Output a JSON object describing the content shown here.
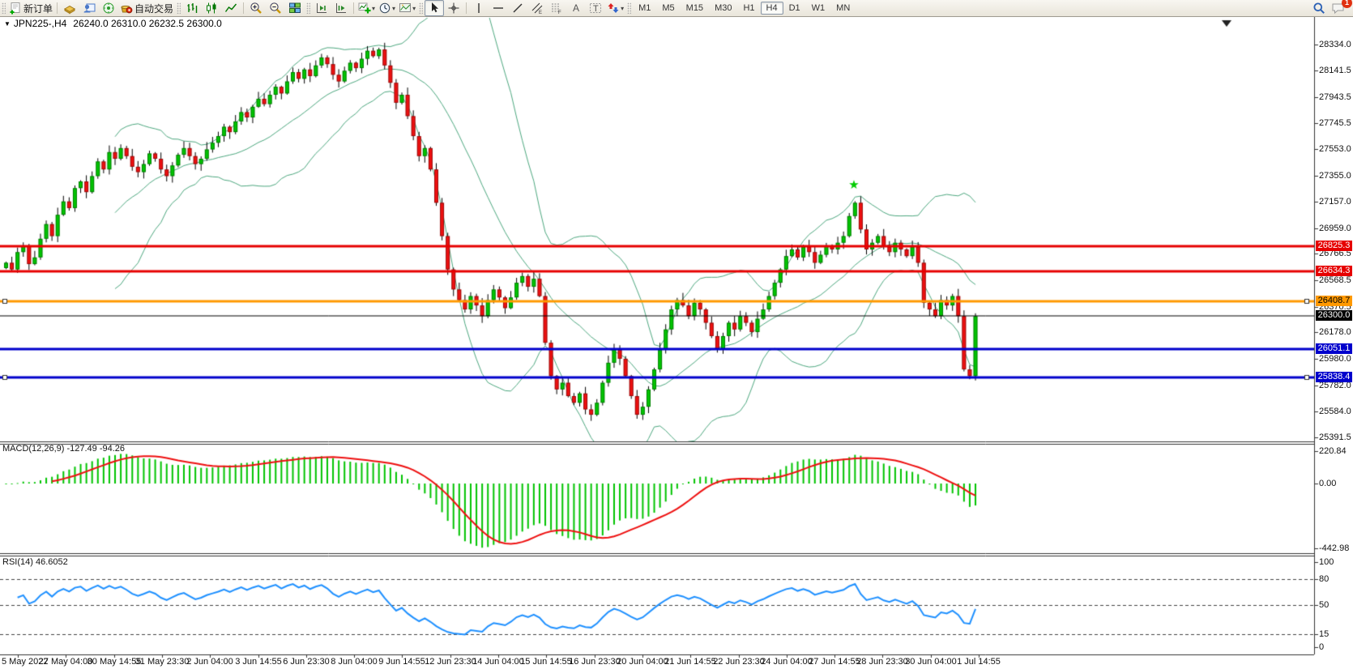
{
  "toolbar": {
    "new_order_label": "新订单",
    "auto_trading_label": "自动交易",
    "timeframes": [
      "M1",
      "M5",
      "M15",
      "M30",
      "H1",
      "H4",
      "D1",
      "W1",
      "MN"
    ],
    "active_timeframe": "H4",
    "notification_badge": "1",
    "icon_glyphs": {
      "channel_sub": "E",
      "fibo_sub": "F",
      "text_icon": "A",
      "label_icon": "T"
    }
  },
  "chart_header": {
    "symbol_period": "JPN225-,H4",
    "ohlc_values": "26240.0 26310.0 26232.5 26300.0",
    "dropdown_glyph": "▼"
  },
  "chart_data": {
    "type": "candlestick",
    "symbol": "JPN225-",
    "period": "H4",
    "current_bar": {
      "open": 26240.0,
      "high": 26310.0,
      "low": 26232.5,
      "close": 26300.0
    },
    "price_axis": {
      "min": 25360,
      "max": 28440,
      "tick_labels": [
        "28334.0",
        "28141.5",
        "27943.5",
        "27745.5",
        "27553.0",
        "27355.0",
        "27157.0",
        "26959.0",
        "26766.5",
        "26568.5",
        "26370.5",
        "26178.0",
        "25980.0",
        "25782.0",
        "25584.0",
        "25391.5"
      ]
    },
    "hlines": [
      {
        "price": 26825.3,
        "label": "26825.3",
        "color": "#e60000",
        "thickness": 3,
        "text_color": "#ffffff",
        "handles": false
      },
      {
        "price": 26634.3,
        "label": "26634.3",
        "color": "#e60000",
        "thickness": 3,
        "text_color": "#ffffff",
        "handles": false
      },
      {
        "price": 26408.7,
        "label": "26408.7",
        "color": "#ff9900",
        "thickness": 3,
        "text_color": "#000000",
        "handles": true
      },
      {
        "price": 26300.0,
        "label": "26300.0",
        "color": "#000000",
        "thickness": 1,
        "text_color": "#ffffff",
        "handles": false
      },
      {
        "price": 26051.1,
        "label": "26051.1",
        "color": "#0000cc",
        "thickness": 3,
        "text_color": "#ffffff",
        "handles": false
      },
      {
        "price": 25838.4,
        "label": "25838.4",
        "color": "#0000cc",
        "thickness": 3,
        "text_color": "#ffffff",
        "handles": true
      }
    ],
    "marker": {
      "index": 148,
      "price": 27285,
      "glyph": "★",
      "color": "#00cc00"
    },
    "indicators": {
      "bollinger": {
        "period": 20,
        "deviation": 2,
        "color": "#4da87f"
      },
      "macd": {
        "label": "MACD(12,26,9) -127.49 -94.26",
        "main_value": "-127.49",
        "signal_value": "-94.26",
        "tick_labels": [
          "220.84",
          "0.00",
          "-442.98"
        ],
        "tick_values": [
          220.84,
          0.0,
          -442.98
        ],
        "vmax": 265,
        "vmin": -464,
        "hist_color": "#00c400",
        "signal_color": "#ee1010"
      },
      "rsi": {
        "label": "RSI(14) 46.6052",
        "value": 46.6052,
        "tick_labels": [
          "100",
          "80",
          "50",
          "15",
          "0"
        ],
        "tick_values": [
          100,
          80,
          50,
          15,
          0
        ],
        "levels": [
          80,
          50,
          15
        ],
        "line_color": "#1e90ff"
      }
    },
    "date_labels": [
      "5 May 2022",
      "27 May 04:00",
      "30 May 14:55",
      "31 May 23:30",
      "2 Jun 04:00",
      "3 Jun 14:55",
      "6 Jun 23:30",
      "8 Jun 04:00",
      "9 Jun 14:55",
      "12 Jun 23:30",
      "14 Jun 04:00",
      "15 Jun 14:55",
      "16 Jun 23:30",
      "20 Jun 04:00",
      "21 Jun 14:55",
      "22 Jun 23:30",
      "24 Jun 04:00",
      "27 Jun 14:55",
      "28 Jun 23:30",
      "30 Jun 04:00",
      "1 Jul 14:55"
    ],
    "candle_closes": [
      26700,
      26650,
      26780,
      26830,
      26690,
      26740,
      26880,
      26990,
      26900,
      27060,
      27160,
      27110,
      27260,
      27310,
      27230,
      27350,
      27460,
      27400,
      27530,
      27480,
      27560,
      27500,
      27420,
      27380,
      27440,
      27520,
      27480,
      27400,
      27350,
      27430,
      27510,
      27560,
      27500,
      27440,
      27480,
      27550,
      27600,
      27650,
      27720,
      27680,
      27760,
      27830,
      27790,
      27870,
      27930,
      27890,
      27960,
      28020,
      27970,
      28060,
      28130,
      28080,
      28150,
      28100,
      28180,
      28240,
      28190,
      28110,
      28060,
      28140,
      28200,
      28160,
      28230,
      28290,
      28250,
      28300,
      28180,
      28050,
      27900,
      27960,
      27800,
      27650,
      27500,
      27560,
      27400,
      27150,
      26900,
      26650,
      26500,
      26420,
      26350,
      26450,
      26380,
      26300,
      26420,
      26500,
      26440,
      26360,
      26440,
      26550,
      26600,
      26520,
      26580,
      26450,
      26100,
      25850,
      25750,
      25800,
      25700,
      25650,
      25720,
      25600,
      25560,
      25650,
      25800,
      25950,
      26050,
      25980,
      25850,
      25700,
      25560,
      25620,
      25750,
      25900,
      26050,
      26200,
      26350,
      26420,
      26380,
      26300,
      26400,
      26350,
      26250,
      26150,
      26050,
      26150,
      26250,
      26200,
      26300,
      26250,
      26180,
      26280,
      26350,
      26450,
      26550,
      26650,
      26750,
      26800,
      26740,
      26820,
      26780,
      26700,
      26760,
      26830,
      26800,
      26850,
      26900,
      27050,
      27150,
      26950,
      26800,
      26850,
      26900,
      26820,
      26780,
      26850,
      26800,
      26750,
      26820,
      26700,
      26400,
      26350,
      26300,
      26420,
      26380,
      26450,
      26300,
      25900,
      25850,
      26300
    ],
    "colors": {
      "up": "#00c400",
      "down": "#ee1010",
      "wick": "#000000"
    }
  }
}
